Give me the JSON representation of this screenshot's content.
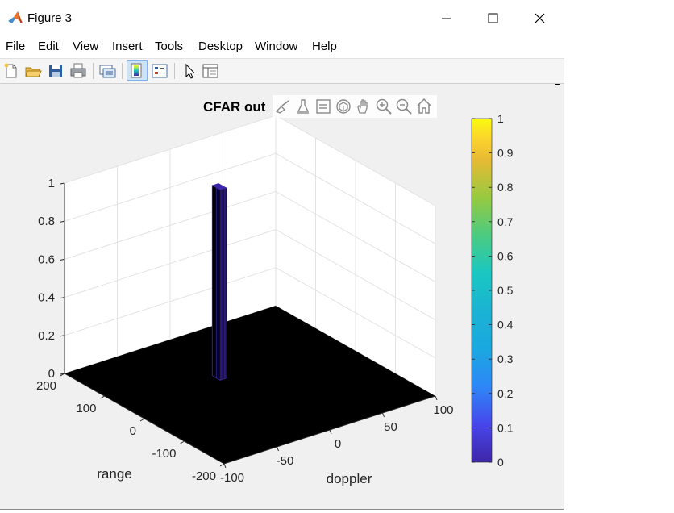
{
  "window": {
    "title": "Figure 3",
    "icon": "matlab-icon",
    "controls": [
      "minimize-icon",
      "maximize-icon",
      "close-icon"
    ]
  },
  "menubar": {
    "items": [
      "File",
      "Edit",
      "View",
      "Insert",
      "Tools",
      "Desktop",
      "Window",
      "Help"
    ]
  },
  "toolbar": {
    "buttons": [
      "new-figure-icon",
      "open-file-icon",
      "save-icon",
      "print-icon",
      "link-plot-icon",
      "colorbar-icon",
      "legend-icon",
      "edit-plot-arrow-icon",
      "property-inspector-icon"
    ],
    "active": "colorbar-icon"
  },
  "axes_toolbar": {
    "buttons": [
      "brush-icon",
      "data-tips-icon",
      "export-icon",
      "rotate-3d-icon",
      "pan-icon",
      "zoom-in-icon",
      "zoom-out-icon",
      "home-icon"
    ]
  },
  "colors": {
    "surface": "#000000",
    "peak_edges": "#3e26a8",
    "axes_background": "#ffffff",
    "figure_background": "#f0f0f0",
    "colormap": [
      "#3e26a8",
      "#4746eb",
      "#2e87f7",
      "#1dafd6",
      "#1ac7c2",
      "#4bcb81",
      "#97ca40",
      "#e7ba34",
      "#fbd32d",
      "#f9fb0e"
    ]
  },
  "chart_data": {
    "type": "surface",
    "title": "CFAR out",
    "xlabel": "doppler",
    "ylabel": "range",
    "zlabel": "",
    "xlim": [
      -100,
      100
    ],
    "ylim": [
      -200,
      200
    ],
    "zlim": [
      0,
      1
    ],
    "xticks": [
      "-100",
      "-50",
      "0",
      "50",
      "100"
    ],
    "yticks": [
      "-200",
      "-100",
      "0",
      "100",
      "200"
    ],
    "zticks": [
      "0",
      "0.2",
      "0.4",
      "0.6",
      "0.8",
      "1"
    ],
    "grid": true,
    "colorbar": {
      "location": "right",
      "range": [
        0,
        1
      ],
      "ticks": [
        "0",
        "0.1",
        "0.2",
        "0.3",
        "0.4",
        "0.5",
        "0.6",
        "0.7",
        "0.8",
        "0.9",
        "1"
      ]
    },
    "values": {
      "baseline": 0,
      "peaks": [
        {
          "doppler": -10,
          "range": 50,
          "z": 1
        }
      ]
    }
  }
}
